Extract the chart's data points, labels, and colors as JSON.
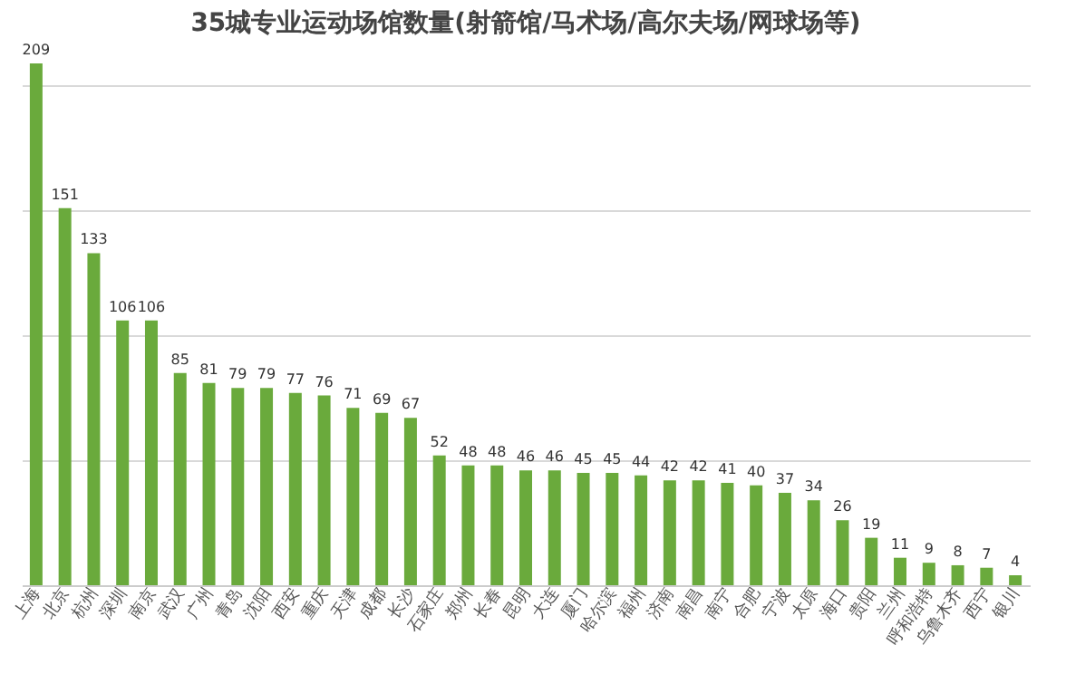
{
  "chart_data": {
    "type": "bar",
    "title": "35城专业运动场馆数量(射箭馆/马术场/高尔夫场/网球场等)",
    "categories": [
      "上海",
      "北京",
      "杭州",
      "深圳",
      "南京",
      "武汉",
      "广州",
      "青岛",
      "沈阳",
      "西安",
      "重庆",
      "天津",
      "成都",
      "长沙",
      "石家庄",
      "郑州",
      "长春",
      "昆明",
      "大连",
      "厦门",
      "哈尔滨",
      "福州",
      "济南",
      "南昌",
      "南宁",
      "合肥",
      "宁波",
      "太原",
      "海口",
      "贵阳",
      "兰州",
      "呼和浩特",
      "乌鲁木齐",
      "西宁",
      "银川"
    ],
    "values": [
      209,
      151,
      133,
      106,
      106,
      85,
      81,
      79,
      79,
      77,
      76,
      71,
      69,
      67,
      52,
      48,
      48,
      46,
      46,
      45,
      45,
      44,
      42,
      42,
      41,
      40,
      37,
      34,
      26,
      19,
      11,
      9,
      8,
      7,
      4
    ],
    "color": "#6aaa3c",
    "yticks": [
      {
        "value": 0,
        "label": null
      },
      {
        "value": 50,
        "label": null
      },
      {
        "value": 100,
        "label": null
      },
      {
        "value": 150,
        "label": null
      },
      {
        "value": 200,
        "label": null
      }
    ],
    "grid": "y",
    "tick_labels": "x",
    "data_labels": true
  }
}
